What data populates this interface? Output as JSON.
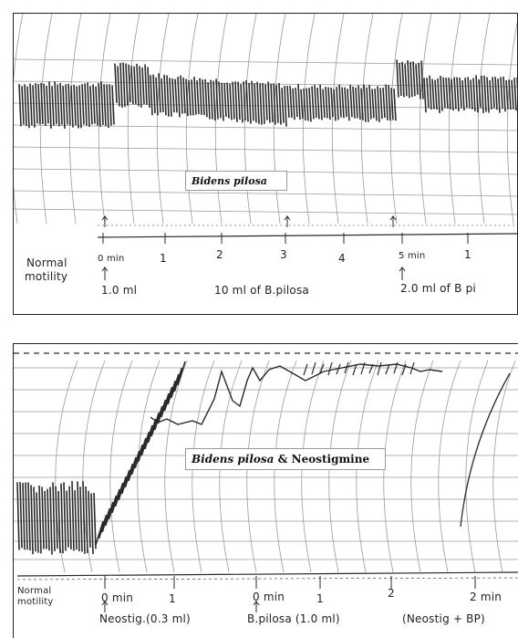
{
  "panels": {
    "top": {
      "label_italic": "Bidens pilosa",
      "label_rest": "",
      "side_label_1": "Normal",
      "side_label_2": "motility",
      "times": [
        "0 min",
        "1",
        "2",
        "3",
        "4",
        "5 min",
        "1"
      ],
      "dose_1": "1.0 ml",
      "dose_2": "10 ml of B.pilosa",
      "dose_3": "2.0 ml of B pi"
    },
    "bottom": {
      "label_italic": "Bidens pilosa",
      "label_rest": " & Neostigmine",
      "side_label_1": "Normal",
      "side_label_2": "motility",
      "times": [
        "0 min",
        "1",
        "0 min",
        "1",
        "2",
        "2 min"
      ],
      "dose_1": "Neostig.(0.3 ml)",
      "dose_2": "B.pilosa (1.0 ml)",
      "dose_3": "(Neostig + BP)"
    }
  },
  "colors": {
    "ink": "#2a2a2a",
    "grid": "#9a9a9a",
    "paper": "#ffffff"
  }
}
